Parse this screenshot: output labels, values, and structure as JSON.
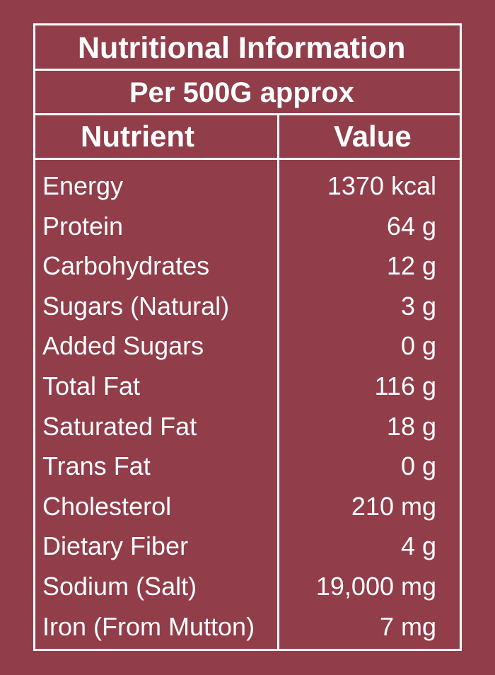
{
  "title": "Nutritional Information",
  "subtitle": "Per 500G approx",
  "headers": {
    "nutrient": "Nutrient",
    "value": "Value"
  },
  "rows": [
    {
      "name": "Energy",
      "value": "1370 kcal"
    },
    {
      "name": "Protein",
      "value": "64 g"
    },
    {
      "name": "Carbohydrates",
      "value": "12 g"
    },
    {
      "name": "Sugars (Natural)",
      "value": "3 g"
    },
    {
      "name": "Added Sugars",
      "value": "0 g"
    },
    {
      "name": "Total Fat",
      "value": "116 g"
    },
    {
      "name": "Saturated Fat",
      "value": "18 g"
    },
    {
      "name": "Trans Fat",
      "value": "0 g"
    },
    {
      "name": "Cholesterol",
      "value": "210 mg"
    },
    {
      "name": "Dietary Fiber",
      "value": "4 g"
    },
    {
      "name": "Sodium (Salt)",
      "value": "19,000 mg"
    },
    {
      "name": "Iron (From Mutton)",
      "value": "7 mg"
    }
  ],
  "colors": {
    "background": "#913d4a",
    "text": "#ffffff",
    "border": "#ffffff"
  }
}
